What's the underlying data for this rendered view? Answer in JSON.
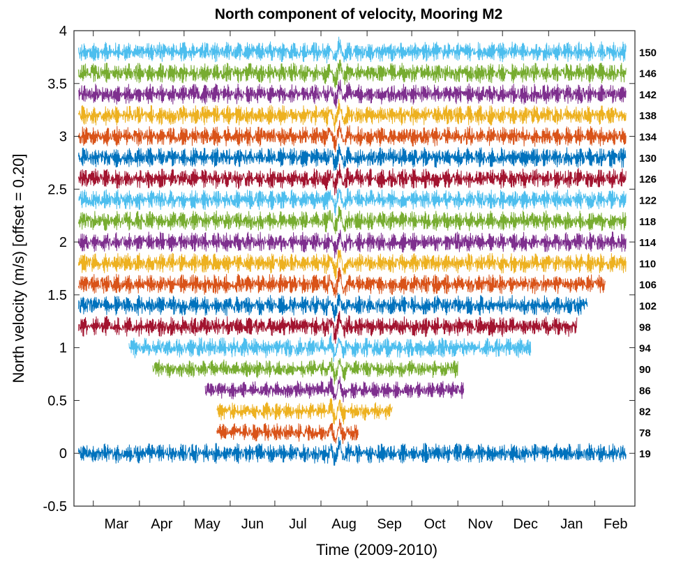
{
  "chart_data": {
    "type": "line",
    "title": "North component of velocity, Mooring M2",
    "xlabel": "Time (2009-2010)",
    "ylabel": "North velocity (m/s) [offset = 0.20]",
    "ylim": [
      -0.5,
      4
    ],
    "yticks": [
      "-0.5",
      "0",
      "0.5",
      "1",
      "1.5",
      "2",
      "2.5",
      "3",
      "3.5",
      "4"
    ],
    "xlim": [
      "2009-02-16",
      "2010-02-28"
    ],
    "xticks": [
      "Mar",
      "Apr",
      "May",
      "Jun",
      "Jul",
      "Aug",
      "Sep",
      "Oct",
      "Nov",
      "Dec",
      "Jan",
      "Feb"
    ],
    "grid": false,
    "series_note": "Each trace is plotted at a vertical offset; labels at right give depth",
    "series": [
      {
        "name": "19",
        "offset": 0.0,
        "color": "#0072BD",
        "start": "2009-02-19",
        "end": "2010-02-22",
        "amp": 0.1
      },
      {
        "name": "78",
        "offset": 0.2,
        "color": "#D95319",
        "start": "2009-05-23",
        "end": "2009-08-26",
        "amp": 0.09
      },
      {
        "name": "82",
        "offset": 0.4,
        "color": "#EDB120",
        "start": "2009-05-23",
        "end": "2009-09-18",
        "amp": 0.09
      },
      {
        "name": "86",
        "offset": 0.6,
        "color": "#7E2F8E",
        "start": "2009-05-15",
        "end": "2009-11-05",
        "amp": 0.09
      },
      {
        "name": "90",
        "offset": 0.8,
        "color": "#77AC30",
        "start": "2009-04-10",
        "end": "2009-11-01",
        "amp": 0.09
      },
      {
        "name": "94",
        "offset": 1.0,
        "color": "#4DBEEE",
        "start": "2009-03-25",
        "end": "2009-12-20",
        "amp": 0.1
      },
      {
        "name": "98",
        "offset": 1.2,
        "color": "#A2142F",
        "start": "2009-02-19",
        "end": "2010-01-20",
        "amp": 0.1
      },
      {
        "name": "102",
        "offset": 1.4,
        "color": "#0072BD",
        "start": "2009-02-19",
        "end": "2010-01-27",
        "amp": 0.1
      },
      {
        "name": "106",
        "offset": 1.6,
        "color": "#D95319",
        "start": "2009-02-19",
        "end": "2010-02-08",
        "amp": 0.1
      },
      {
        "name": "110",
        "offset": 1.8,
        "color": "#EDB120",
        "start": "2009-02-19",
        "end": "2010-02-22",
        "amp": 0.1
      },
      {
        "name": "114",
        "offset": 2.0,
        "color": "#7E2F8E",
        "start": "2009-02-19",
        "end": "2010-02-22",
        "amp": 0.1
      },
      {
        "name": "118",
        "offset": 2.2,
        "color": "#77AC30",
        "start": "2009-02-19",
        "end": "2010-02-22",
        "amp": 0.1
      },
      {
        "name": "122",
        "offset": 2.4,
        "color": "#4DBEEE",
        "start": "2009-02-19",
        "end": "2010-02-22",
        "amp": 0.1
      },
      {
        "name": "126",
        "offset": 2.6,
        "color": "#A2142F",
        "start": "2009-02-19",
        "end": "2010-02-22",
        "amp": 0.1
      },
      {
        "name": "130",
        "offset": 2.8,
        "color": "#0072BD",
        "start": "2009-02-19",
        "end": "2010-02-22",
        "amp": 0.1
      },
      {
        "name": "134",
        "offset": 3.0,
        "color": "#D95319",
        "start": "2009-02-19",
        "end": "2010-02-22",
        "amp": 0.1
      },
      {
        "name": "138",
        "offset": 3.2,
        "color": "#EDB120",
        "start": "2009-02-19",
        "end": "2010-02-22",
        "amp": 0.1
      },
      {
        "name": "142",
        "offset": 3.4,
        "color": "#7E2F8E",
        "start": "2009-02-19",
        "end": "2010-02-22",
        "amp": 0.1
      },
      {
        "name": "146",
        "offset": 3.6,
        "color": "#77AC30",
        "start": "2009-02-19",
        "end": "2010-02-22",
        "amp": 0.1
      },
      {
        "name": "150",
        "offset": 3.8,
        "color": "#4DBEEE",
        "start": "2009-02-19",
        "end": "2010-02-22",
        "amp": 0.1
      }
    ]
  }
}
